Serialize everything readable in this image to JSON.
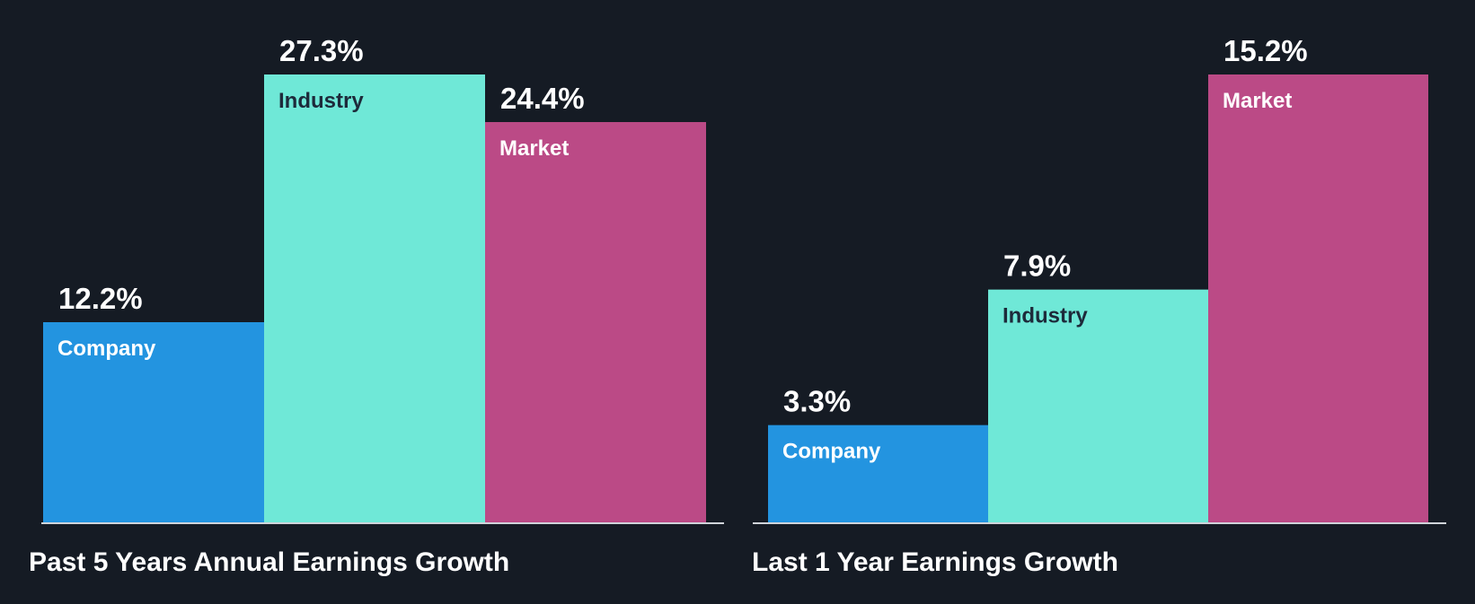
{
  "colors": {
    "background": "#151b24",
    "company": "#2394e0",
    "industry": "#6fe8d7",
    "market": "#bb4a86",
    "baseline": "#d0d4da",
    "value_text": "#ffffff",
    "label_text_light": "#ffffff",
    "label_text_dark": "#1d2a3a"
  },
  "chart_data": [
    {
      "type": "bar",
      "title": "Past 5 Years Annual Earnings Growth",
      "categories": [
        "Company",
        "Industry",
        "Market"
      ],
      "values": [
        12.2,
        27.3,
        24.4
      ],
      "value_labels": [
        "12.2%",
        "27.3%",
        "24.4%"
      ],
      "unit": "%",
      "ylim": [
        0,
        27.3
      ],
      "xlabel": "",
      "ylabel": "",
      "grid": false
    },
    {
      "type": "bar",
      "title": "Last 1 Year Earnings Growth",
      "categories": [
        "Company",
        "Industry",
        "Market"
      ],
      "values": [
        3.3,
        7.9,
        15.2
      ],
      "value_labels": [
        "3.3%",
        "7.9%",
        "15.2%"
      ],
      "unit": "%",
      "ylim": [
        0,
        15.2
      ],
      "xlabel": "",
      "ylabel": "",
      "grid": false
    }
  ]
}
